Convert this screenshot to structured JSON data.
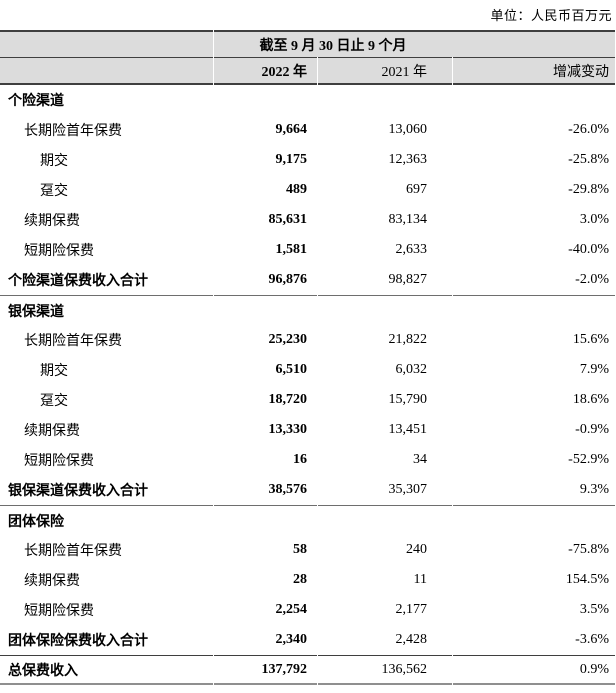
{
  "unit_note": "单位：人民币百万元",
  "table": {
    "period_header": "截至 9 月 30 日止 9 个月",
    "columns": {
      "y2022": "2022 年",
      "y2021": "2021 年",
      "change": "增减变动"
    },
    "rows": [
      {
        "label": "个险渠道",
        "indent": 0,
        "bold": true,
        "v2022": "",
        "v2021": "",
        "chg": "",
        "sep": false,
        "grand": false
      },
      {
        "label": "长期险首年保费",
        "indent": 1,
        "bold": false,
        "v2022": "9,664",
        "v2021": "13,060",
        "chg": "-26.0%",
        "sep": false,
        "grand": false
      },
      {
        "label": "期交",
        "indent": 2,
        "bold": false,
        "v2022": "9,175",
        "v2021": "12,363",
        "chg": "-25.8%",
        "sep": false,
        "grand": false
      },
      {
        "label": "趸交",
        "indent": 2,
        "bold": false,
        "v2022": "489",
        "v2021": "697",
        "chg": "-29.8%",
        "sep": false,
        "grand": false
      },
      {
        "label": "续期保费",
        "indent": 1,
        "bold": false,
        "v2022": "85,631",
        "v2021": "83,134",
        "chg": "3.0%",
        "sep": false,
        "grand": false
      },
      {
        "label": "短期险保费",
        "indent": 1,
        "bold": false,
        "v2022": "1,581",
        "v2021": "2,633",
        "chg": "-40.0%",
        "sep": false,
        "grand": false
      },
      {
        "label": "个险渠道保费收入合计",
        "indent": 0,
        "bold": true,
        "v2022": "96,876",
        "v2021": "98,827",
        "chg": "-2.0%",
        "sep": false,
        "grand": false
      },
      {
        "label": "银保渠道",
        "indent": 0,
        "bold": true,
        "v2022": "",
        "v2021": "",
        "chg": "",
        "sep": true,
        "grand": false
      },
      {
        "label": "长期险首年保费",
        "indent": 1,
        "bold": false,
        "v2022": "25,230",
        "v2021": "21,822",
        "chg": "15.6%",
        "sep": false,
        "grand": false
      },
      {
        "label": "期交",
        "indent": 2,
        "bold": false,
        "v2022": "6,510",
        "v2021": "6,032",
        "chg": "7.9%",
        "sep": false,
        "grand": false
      },
      {
        "label": "趸交",
        "indent": 2,
        "bold": false,
        "v2022": "18,720",
        "v2021": "15,790",
        "chg": "18.6%",
        "sep": false,
        "grand": false
      },
      {
        "label": "续期保费",
        "indent": 1,
        "bold": false,
        "v2022": "13,330",
        "v2021": "13,451",
        "chg": "-0.9%",
        "sep": false,
        "grand": false
      },
      {
        "label": "短期险保费",
        "indent": 1,
        "bold": false,
        "v2022": "16",
        "v2021": "34",
        "chg": "-52.9%",
        "sep": false,
        "grand": false
      },
      {
        "label": "银保渠道保费收入合计",
        "indent": 0,
        "bold": true,
        "v2022": "38,576",
        "v2021": "35,307",
        "chg": "9.3%",
        "sep": false,
        "grand": false
      },
      {
        "label": "团体保险",
        "indent": 0,
        "bold": true,
        "v2022": "",
        "v2021": "",
        "chg": "",
        "sep": true,
        "grand": false
      },
      {
        "label": "长期险首年保费",
        "indent": 1,
        "bold": false,
        "v2022": "58",
        "v2021": "240",
        "chg": "-75.8%",
        "sep": false,
        "grand": false
      },
      {
        "label": "续期保费",
        "indent": 1,
        "bold": false,
        "v2022": "28",
        "v2021": "11",
        "chg": "154.5%",
        "sep": false,
        "grand": false
      },
      {
        "label": "短期险保费",
        "indent": 1,
        "bold": false,
        "v2022": "2,254",
        "v2021": "2,177",
        "chg": "3.5%",
        "sep": false,
        "grand": false
      },
      {
        "label": "团体保险保费收入合计",
        "indent": 0,
        "bold": true,
        "v2022": "2,340",
        "v2021": "2,428",
        "chg": "-3.6%",
        "sep": false,
        "grand": false
      },
      {
        "label": "总保费收入",
        "indent": 0,
        "bold": true,
        "v2022": "137,792",
        "v2021": "136,562",
        "chg": "0.9%",
        "sep": false,
        "grand": true
      }
    ]
  },
  "colors": {
    "header_bg": "#dcdcdc",
    "border_dark": "#3f3f3f",
    "border_mid": "#6e6e6e",
    "border_light": "#8f8f8f",
    "text": "#000000"
  }
}
